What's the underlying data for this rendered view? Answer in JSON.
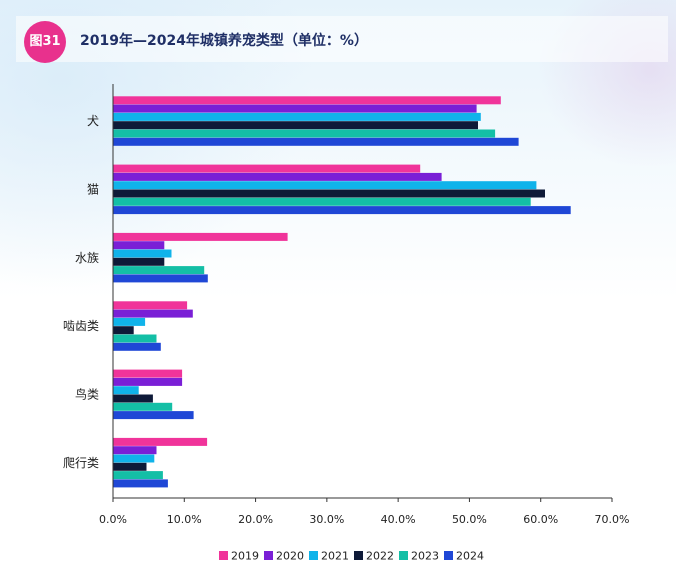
{
  "figure_badge": "图31",
  "title": "2019年—2024年城镇养宠类型（单位：%）",
  "colors": {
    "2019": "#f0349a",
    "2020": "#7a1fd6",
    "2021": "#10b3ea",
    "2022": "#0e1a38",
    "2023": "#14bfa6",
    "2024": "#1f47d6",
    "badge": "#e8318d",
    "title": "#1f2f66",
    "axis": "#333333"
  },
  "chart_data": {
    "type": "bar",
    "orientation": "horizontal",
    "categories": [
      "犬",
      "猫",
      "水族",
      "啮齿类",
      "鸟类",
      "爬行类"
    ],
    "series": [
      {
        "name": "2019",
        "values": [
          54.4,
          43.1,
          24.5,
          10.4,
          9.7,
          13.2
        ]
      },
      {
        "name": "2020",
        "values": [
          51.0,
          46.1,
          7.2,
          11.2,
          9.7,
          6.1
        ]
      },
      {
        "name": "2021",
        "values": [
          51.6,
          59.4,
          8.2,
          4.5,
          3.6,
          5.8
        ]
      },
      {
        "name": "2022",
        "values": [
          51.2,
          60.6,
          7.2,
          2.9,
          5.6,
          4.7
        ]
      },
      {
        "name": "2023",
        "values": [
          53.6,
          58.6,
          12.8,
          6.1,
          8.3,
          7.0
        ]
      },
      {
        "name": "2024",
        "values": [
          56.9,
          64.2,
          13.3,
          6.7,
          11.3,
          7.7
        ]
      }
    ],
    "xlim": [
      0,
      70
    ],
    "xticks": [
      "0.0%",
      "10.0%",
      "20.0%",
      "30.0%",
      "40.0%",
      "50.0%",
      "60.0%",
      "70.0%"
    ],
    "grid": false,
    "legend_position": "bottom"
  }
}
